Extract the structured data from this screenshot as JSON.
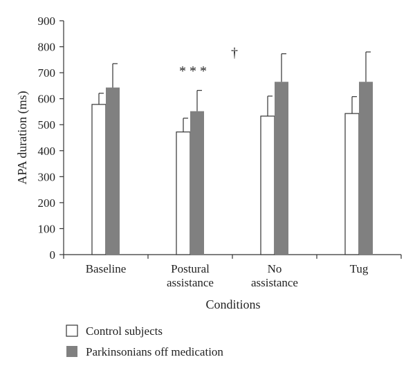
{
  "chart_data": {
    "type": "bar",
    "xlabel": "Conditions",
    "ylabel": "APA duration (ms)",
    "ylim": [
      0,
      900
    ],
    "yticks": [
      0,
      100,
      200,
      300,
      400,
      500,
      600,
      700,
      800,
      900
    ],
    "categories": [
      [
        "Baseline"
      ],
      [
        "Postural",
        "assistance"
      ],
      [
        "No",
        "assistance"
      ],
      [
        "Tug"
      ]
    ],
    "series": [
      {
        "name": "Control subjects",
        "color": "#ffffff",
        "values": [
          578,
          472,
          533,
          543
        ],
        "errors": [
          43,
          53,
          77,
          65
        ]
      },
      {
        "name": "Parkinsonians off medication",
        "color": "#808080",
        "values": [
          643,
          552,
          665,
          665
        ],
        "errors": [
          92,
          80,
          108,
          115
        ]
      }
    ],
    "annotations": [
      {
        "text": "* * *",
        "category_index": 1,
        "y": 690
      },
      {
        "text": "†",
        "category_index": 1.5,
        "y": 760
      }
    ],
    "grid": false,
    "legend_position": "bottom-left"
  }
}
